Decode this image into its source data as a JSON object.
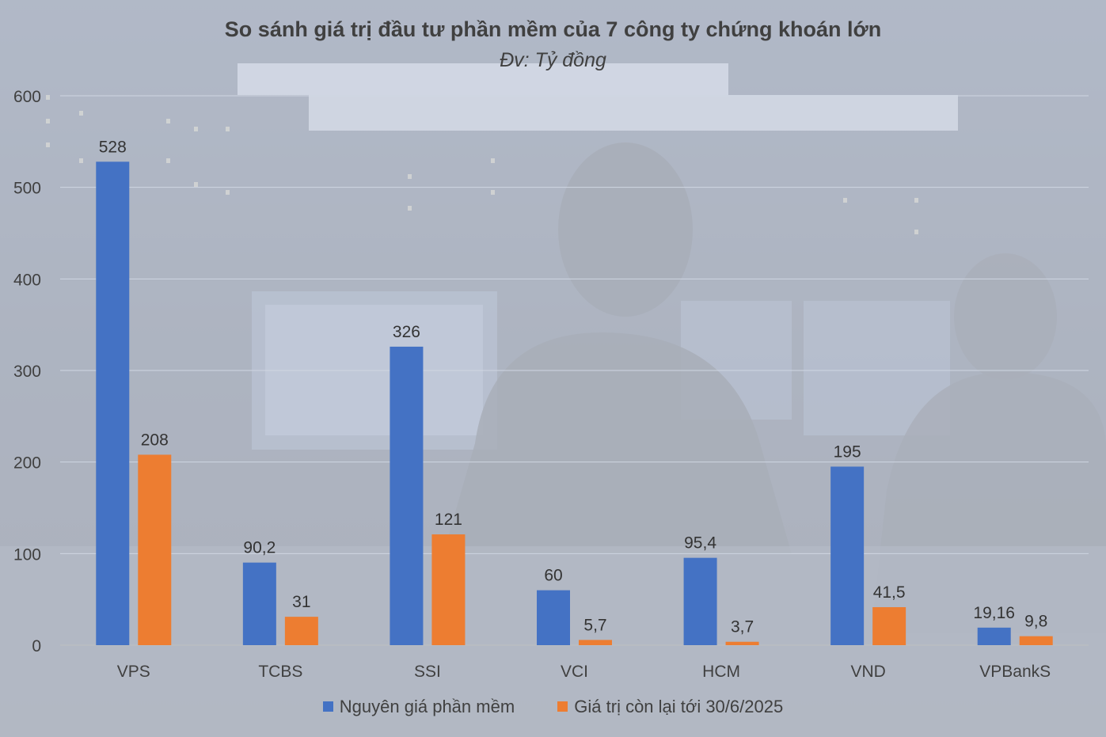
{
  "chart_data": {
    "type": "bar",
    "title": "So sánh giá trị đầu tư phần mềm của 7 công ty chứng khoán lớn",
    "subtitle": "Đv: Tỷ đồng",
    "categories": [
      "VPS",
      "TCBS",
      "SSI",
      "VCI",
      "HCM",
      "VND",
      "VPBankS"
    ],
    "series": [
      {
        "name": "Nguyên giá phần mềm",
        "color": "#4472C4",
        "values": [
          528,
          90.2,
          326,
          60,
          95.4,
          195,
          19.16
        ],
        "labels": [
          "528",
          "90,2",
          "326",
          "60",
          "95,4",
          "195",
          "19,16"
        ]
      },
      {
        "name": "Giá trị còn lại tới 30/6/2025",
        "color": "#ED7D31",
        "values": [
          208,
          31,
          121,
          5.7,
          3.7,
          41.5,
          9.8
        ],
        "labels": [
          "208",
          "31",
          "121",
          "5,7",
          "3,7",
          "41,5",
          "9,8"
        ]
      }
    ],
    "ylim": [
      0,
      600
    ],
    "yticks": [
      0,
      100,
      200,
      300,
      400,
      500,
      600
    ],
    "grid": true,
    "legend": "bottom"
  }
}
